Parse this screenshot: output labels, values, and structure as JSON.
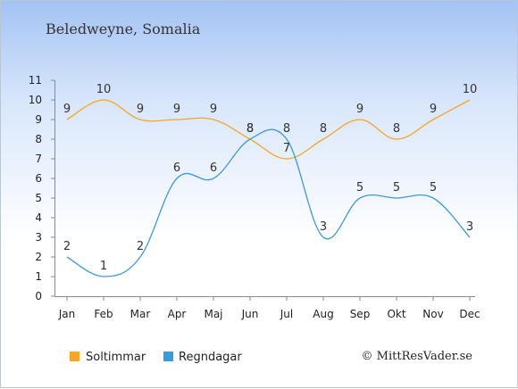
{
  "chart_data": {
    "type": "line",
    "title": "Beledweyne, Somalia",
    "categories": [
      "Jan",
      "Feb",
      "Mar",
      "Apr",
      "Maj",
      "Jun",
      "Jul",
      "Aug",
      "Sep",
      "Okt",
      "Nov",
      "Dec"
    ],
    "series": [
      {
        "name": "Soltimmar",
        "color": "#f5a623",
        "values": [
          9,
          10,
          9,
          9,
          9,
          8,
          7,
          8,
          9,
          8,
          9,
          10
        ],
        "labels": [
          "9",
          "10",
          "9",
          "9",
          "9",
          "8",
          "7",
          "8",
          "9",
          "8",
          "9",
          "10"
        ]
      },
      {
        "name": "Regndagar",
        "color": "#3a9be0",
        "values": [
          2,
          1,
          2,
          6,
          6,
          8,
          8,
          3,
          5,
          5,
          5,
          3
        ],
        "labels": [
          "2",
          "1",
          "2",
          "6",
          "6",
          "8",
          "8",
          "3",
          "5",
          "5",
          "5",
          "3"
        ]
      }
    ],
    "y_ticks": [
      "0",
      "1",
      "2",
      "3",
      "4",
      "5",
      "6",
      "7",
      "8",
      "9",
      "10",
      "11"
    ],
    "ylim": [
      0,
      11
    ],
    "grid": false,
    "legend_position": "bottom-left"
  },
  "credit": "© MittResVader.se"
}
